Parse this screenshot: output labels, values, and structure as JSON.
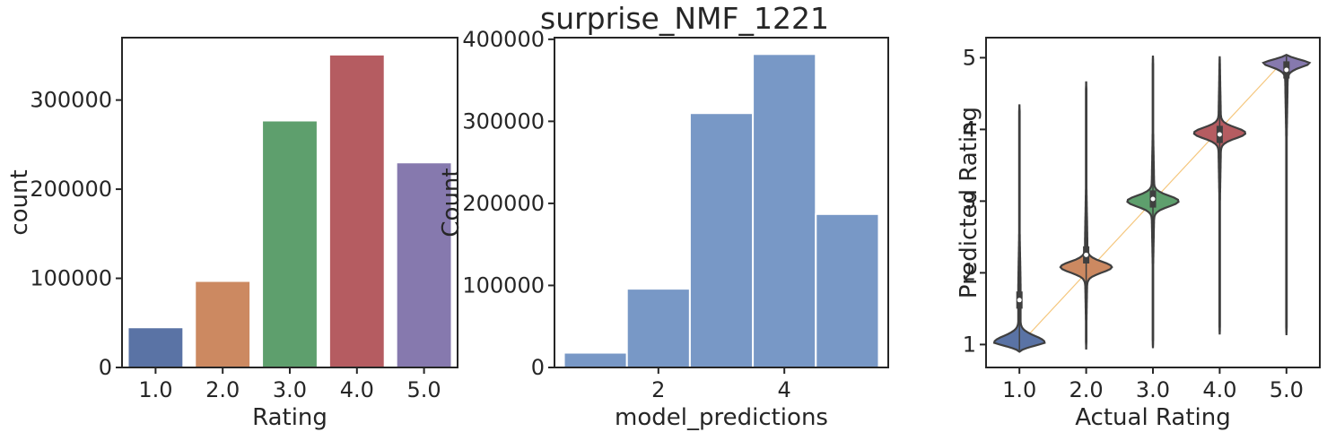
{
  "figure": {
    "suptitle": "surprise_NMF_1221"
  },
  "chart_data": [
    {
      "type": "bar",
      "xlabel": "Rating",
      "ylabel": "count",
      "categories": [
        "1.0",
        "2.0",
        "3.0",
        "4.0",
        "5.0"
      ],
      "values": [
        44000,
        96000,
        276000,
        350000,
        229000
      ],
      "colors": [
        "#5a73a5",
        "#cc8961",
        "#5e9f6d",
        "#b55c61",
        "#8679ae"
      ],
      "ylim": [
        0,
        370000
      ],
      "yticks": [
        0,
        100000,
        200000,
        300000
      ],
      "ytick_labels": [
        "0",
        "100000",
        "200000",
        "300000"
      ],
      "grid": false
    },
    {
      "type": "bar",
      "xlabel": "model_predictions",
      "ylabel": "Count",
      "bins": [
        {
          "x0": 0.5,
          "x1": 1.5,
          "value": 18000
        },
        {
          "x0": 1.5,
          "x1": 2.5,
          "value": 96000
        },
        {
          "x0": 2.5,
          "x1": 3.5,
          "value": 310000
        },
        {
          "x0": 3.5,
          "x1": 4.5,
          "value": 382000
        },
        {
          "x0": 4.5,
          "x1": 5.5,
          "value": 187000
        }
      ],
      "color": "#7898c6",
      "xlim": [
        0.35,
        5.65
      ],
      "ylim": [
        0,
        402000
      ],
      "xticks": [
        2,
        4
      ],
      "xtick_labels": [
        "2",
        "4"
      ],
      "yticks": [
        0,
        100000,
        200000,
        300000,
        400000
      ],
      "ytick_labels": [
        "0",
        "100000",
        "200000",
        "300000",
        "400000"
      ],
      "grid": false
    },
    {
      "type": "violin",
      "xlabel": "Actual Rating",
      "ylabel": "Predicted Rating",
      "categories": [
        "1.0",
        "2.0",
        "3.0",
        "4.0",
        "5.0"
      ],
      "colors": [
        "#5a73a5",
        "#cc8961",
        "#5e9f6d",
        "#b55c61",
        "#8679ae"
      ],
      "ylim": [
        0.68,
        5.28
      ],
      "yticks": [
        1,
        2,
        3,
        4,
        5
      ],
      "ytick_labels": [
        "1",
        "2",
        "3",
        "4",
        "5"
      ],
      "violins": [
        {
          "min": 0.9,
          "max": 4.35,
          "median": 1.62,
          "mode": 1.03
        },
        {
          "min": 0.93,
          "max": 4.67,
          "median": 2.25,
          "mode": 2.08
        },
        {
          "min": 0.95,
          "max": 5.03,
          "median": 3.03,
          "mode": 3.0
        },
        {
          "min": 1.14,
          "max": 5.02,
          "median": 3.93,
          "mode": 3.95
        },
        {
          "min": 1.13,
          "max": 5.04,
          "median": 4.83,
          "mode": 4.95
        }
      ],
      "reference_line": {
        "from": [
          1,
          1
        ],
        "to": [
          5,
          5
        ],
        "color": "#f5c77e"
      },
      "grid": false
    }
  ]
}
